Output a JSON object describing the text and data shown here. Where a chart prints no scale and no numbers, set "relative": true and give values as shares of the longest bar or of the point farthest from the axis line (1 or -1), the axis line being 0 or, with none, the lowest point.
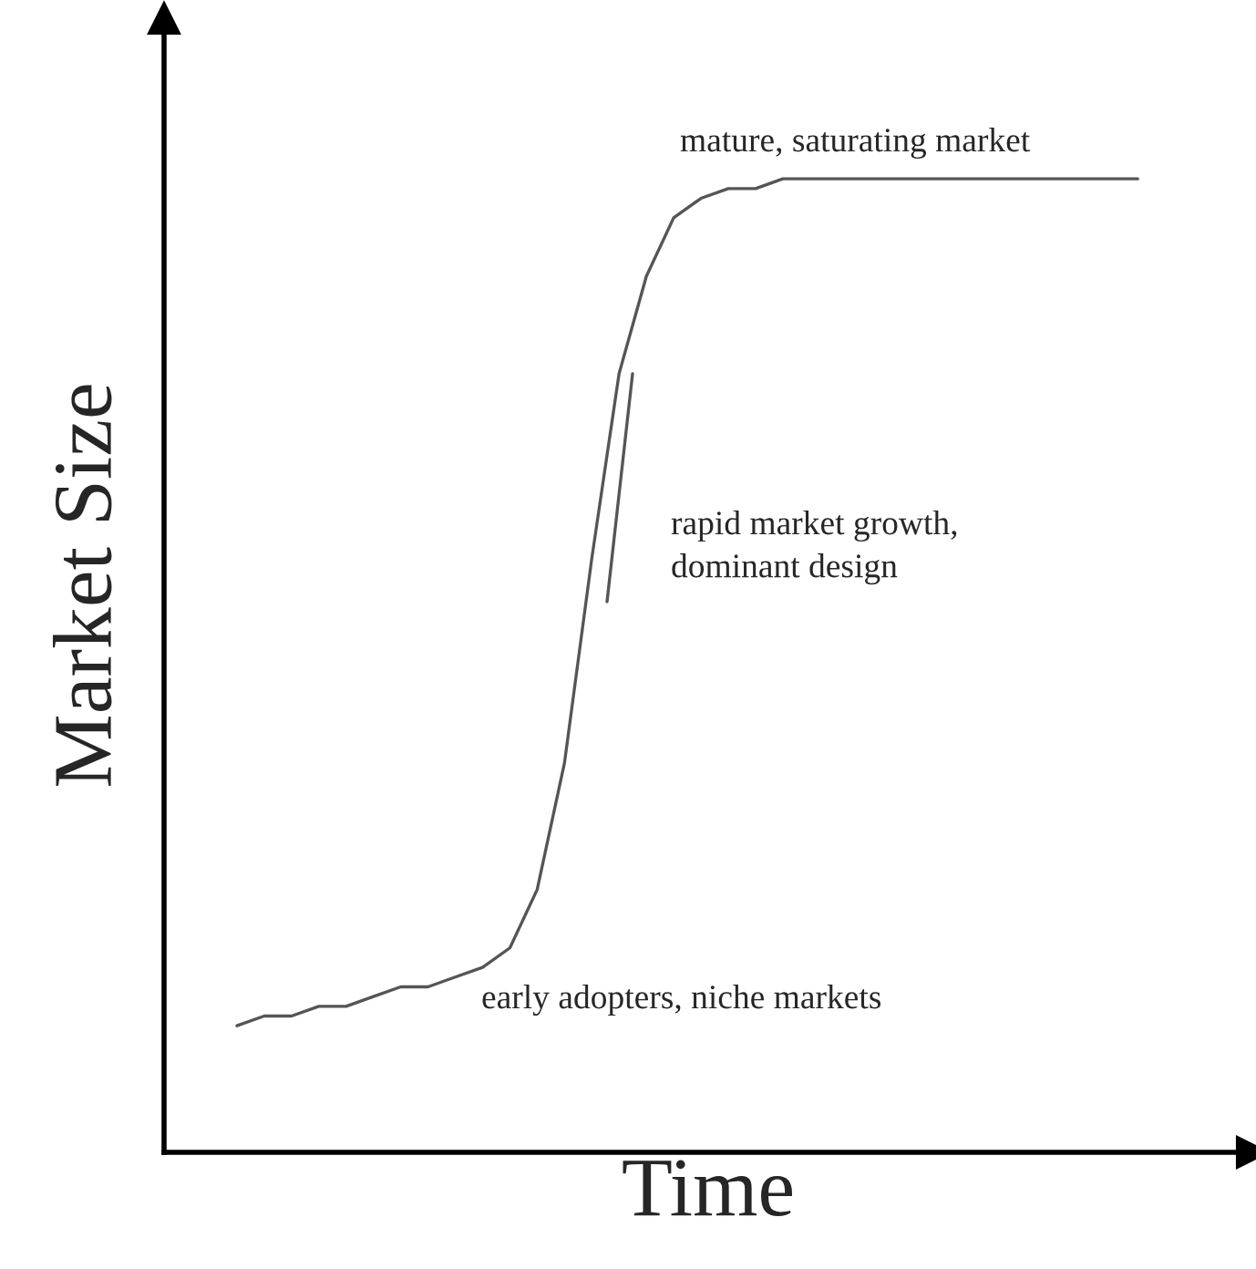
{
  "chart_data": {
    "type": "line",
    "relative": true,
    "xlabel": "Time",
    "ylabel": "Market Size",
    "categories": [
      null,
      null,
      null,
      null,
      null,
      null,
      null,
      null,
      null,
      null,
      null,
      null,
      null,
      null,
      null,
      null,
      null,
      null,
      null,
      null,
      null,
      null,
      null,
      null,
      null,
      null,
      null,
      null,
      null,
      null,
      null,
      null,
      null,
      null
    ],
    "series": [
      {
        "color": "#555555",
        "values": [
          0.13,
          0.14,
          0.14,
          0.15,
          0.15,
          0.16,
          0.17,
          0.17,
          0.18,
          0.19,
          0.21,
          0.27,
          0.4,
          0.61,
          0.8,
          0.9,
          0.96,
          0.98,
          0.99,
          0.99,
          1.0,
          1.0,
          1.0,
          1.0,
          1.0,
          1.0,
          1.0,
          1.0,
          1.0,
          1.0,
          1.0,
          1.0,
          1.0,
          1.0
        ]
      }
    ],
    "annotations": [
      "mature, saturating market",
      "rapid market growth,\ndominant design",
      "early adopters, niche markets"
    ],
    "legend": false,
    "marker": "none",
    "line_style": "solid",
    "tick_labels": false
  }
}
